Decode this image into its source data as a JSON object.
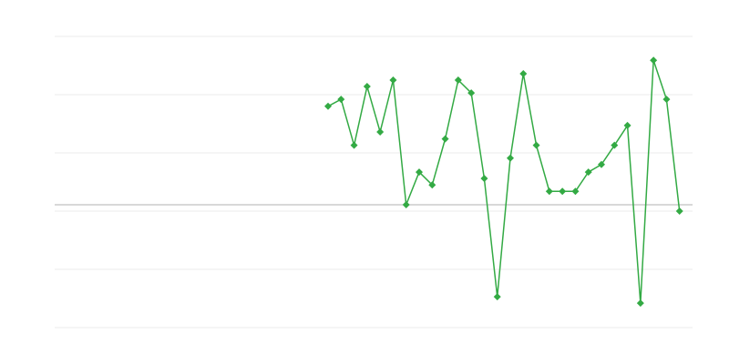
{
  "chart_data": {
    "type": "line",
    "title": "",
    "xlabel": "",
    "ylabel": "",
    "x": [
      21,
      22,
      23,
      24,
      25,
      26,
      27,
      28,
      29,
      30,
      31,
      32,
      33,
      34,
      35,
      36,
      37,
      38,
      39,
      40,
      41,
      42,
      43,
      44,
      45,
      46,
      47,
      48
    ],
    "series": [
      {
        "values": [
          1.69,
          1.81,
          1.02,
          2.03,
          1.25,
          2.14,
          0,
          0.56,
          0.34,
          1.13,
          2.14,
          1.92,
          0.45,
          -1.58,
          0.8,
          2.25,
          1.02,
          0.23,
          0.23,
          0.23,
          0.56,
          0.69,
          1.02,
          1.36,
          -1.69,
          2.48,
          1.81,
          -0.11
        ],
        "color": "#33aa44"
      }
    ],
    "xlim": [
      0,
      49
    ],
    "ylim": [
      -2.11,
      2.89
    ],
    "gridlines": [
      2.89,
      1.89,
      0.89,
      -0.11,
      -1.11,
      -2.11
    ],
    "baseline": 0,
    "grid": true,
    "tick_labels_shown": false,
    "legend": "none",
    "colors": {
      "line": "#33aa44",
      "grid": "#ebebeb",
      "baseline": "#b0b0b0"
    }
  }
}
